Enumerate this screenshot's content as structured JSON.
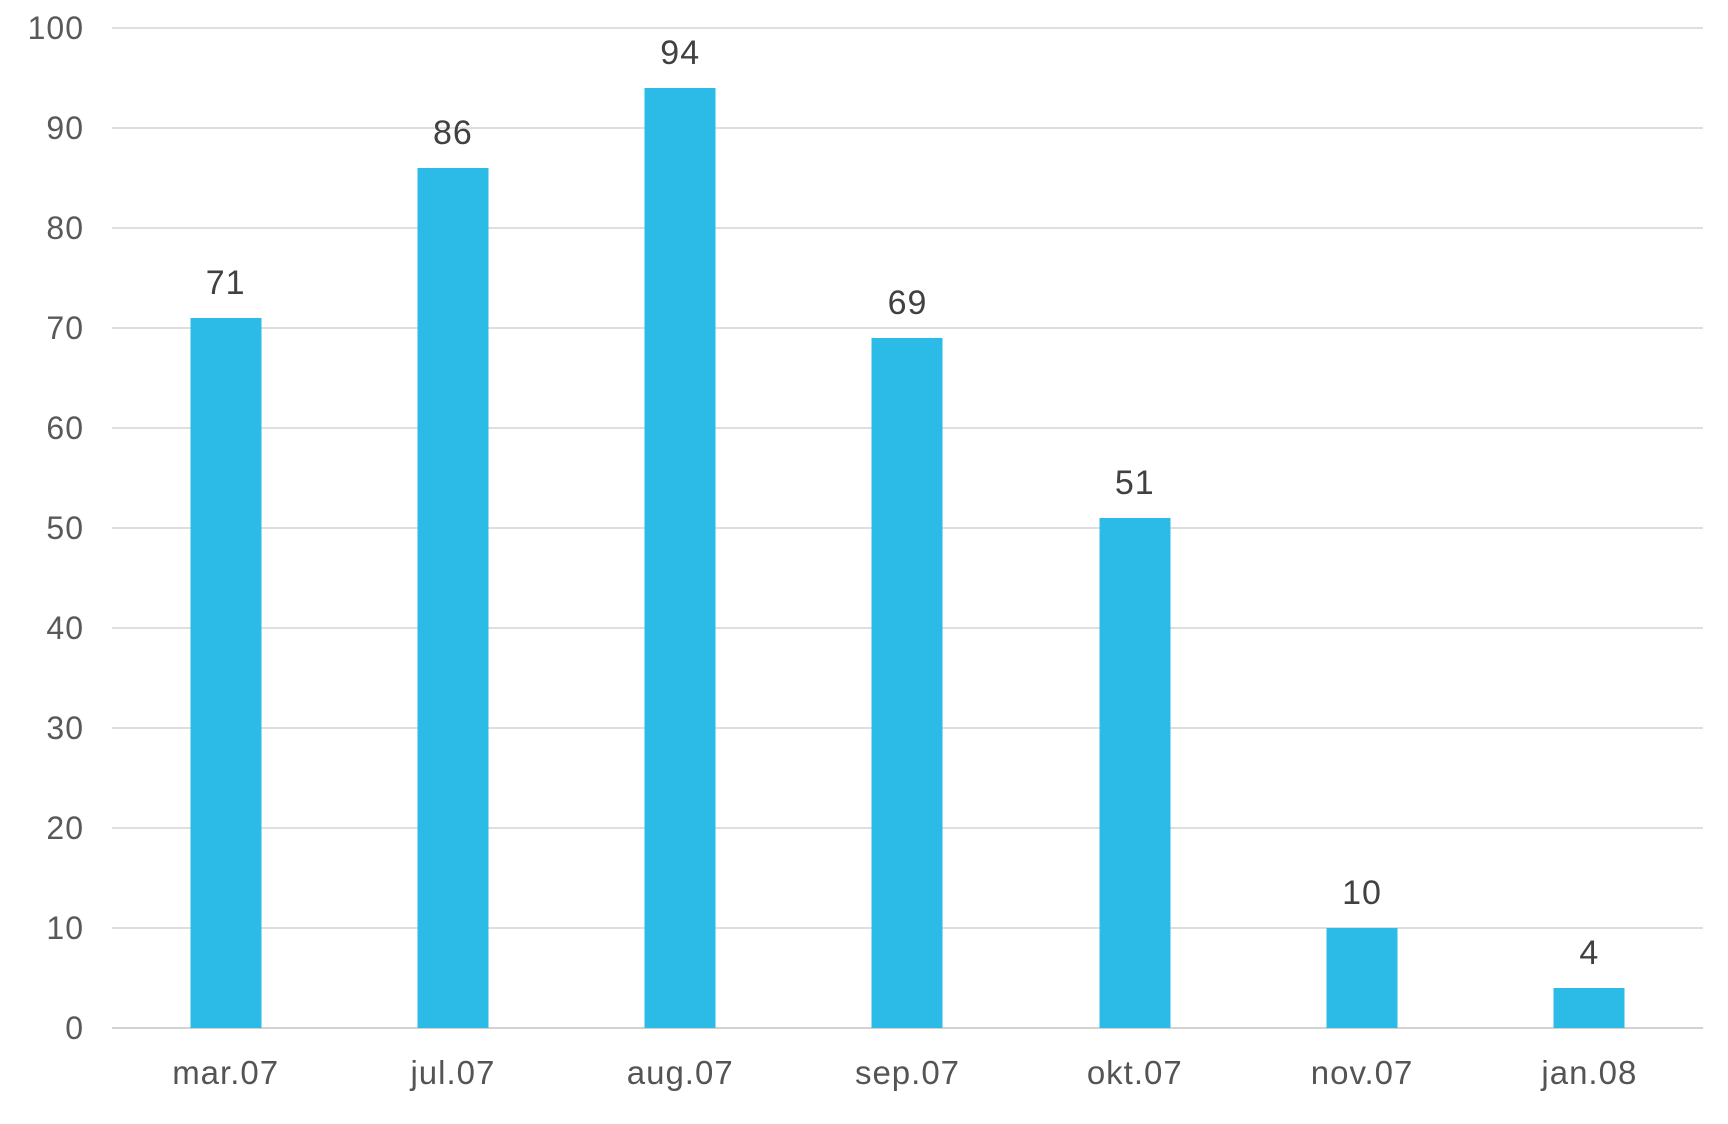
{
  "chart_data": {
    "type": "bar",
    "title": "",
    "xlabel": "",
    "ylabel": "",
    "categories": [
      "mar.07",
      "jul.07",
      "aug.07",
      "sep.07",
      "okt.07",
      "nov.07",
      "jan.08"
    ],
    "values": [
      71,
      86,
      94,
      69,
      51,
      10,
      4
    ],
    "data_labels": [
      "71",
      "86",
      "94",
      "69",
      "51",
      "10",
      "4"
    ],
    "ylim": [
      0,
      100
    ],
    "yticks": [
      0,
      10,
      20,
      30,
      40,
      50,
      60,
      70,
      80,
      90,
      100
    ],
    "grid": "horizontal-only",
    "legend": "none",
    "colors": {
      "bar_fill": "#2BBBE6",
      "gridline": "#DEDEDE",
      "axis_baseline": "#D2D2D2",
      "y_tick_label": "#58595B",
      "data_label": "#414042",
      "x_category_label": "#545456",
      "background": "#FFFFFF"
    }
  }
}
